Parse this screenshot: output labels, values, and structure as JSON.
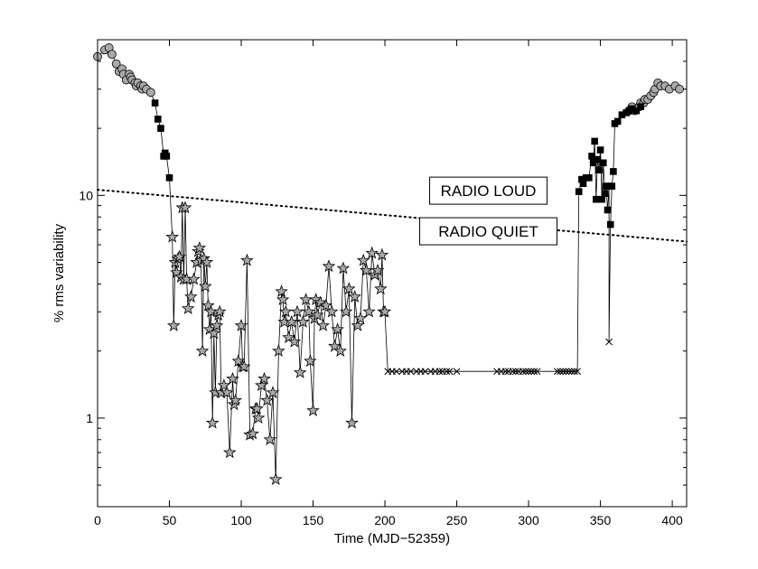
{
  "chart_data": {
    "type": "scatter",
    "xlabel": "Time (MJD−52359)",
    "ylabel": "% rms variability",
    "xlim": [
      0,
      410
    ],
    "ylim": [
      0.4,
      50
    ],
    "yscale": "log",
    "xticks": [
      0,
      50,
      100,
      150,
      200,
      250,
      300,
      350,
      400
    ],
    "yticks": [
      1,
      10
    ],
    "yticklabels": [
      "1",
      "10"
    ],
    "grid": false,
    "annotations": [
      {
        "text": "RADIO LOUD",
        "x": 272,
        "y": 10.5
      },
      {
        "text": "RADIO QUIET",
        "x": 272,
        "y": 6.9
      }
    ],
    "divider": {
      "style": "dotted",
      "x": [
        0,
        410
      ],
      "y": [
        10.6,
        6.2
      ]
    },
    "series": [
      {
        "marker": "circle",
        "x": [
          0,
          5,
          8,
          10,
          13,
          15,
          17,
          18,
          20,
          22,
          23,
          24,
          26,
          27,
          28,
          30,
          31,
          32,
          34,
          37,
          370,
          372,
          374,
          377,
          378,
          380,
          381,
          383,
          385,
          387,
          388,
          390,
          392,
          395,
          398,
          402,
          405
        ],
        "y": [
          42,
          45,
          46,
          43,
          39,
          36,
          37,
          35,
          33,
          35,
          34,
          33,
          32,
          31,
          32,
          31,
          30,
          31,
          30,
          29,
          24,
          25,
          24,
          25,
          26,
          26,
          27,
          27,
          28,
          29,
          30,
          32,
          31,
          31,
          30,
          31,
          30
        ]
      },
      {
        "marker": "square",
        "x": [
          40,
          42,
          44,
          46,
          47,
          48,
          50,
          335,
          337,
          338,
          340,
          342,
          344,
          345,
          346,
          347,
          348,
          349,
          350,
          351,
          352,
          353,
          354,
          355,
          356,
          357,
          358,
          359,
          360,
          362,
          365,
          368,
          370,
          372,
          375,
          378
        ],
        "y": [
          26,
          22,
          20,
          15,
          15.5,
          15,
          12,
          10.4,
          11.8,
          11.3,
          12,
          12,
          15,
          14,
          17.5,
          9.6,
          14.5,
          13,
          16,
          9.6,
          14,
          10.2,
          11,
          8.6,
          11,
          7.4,
          11,
          12.8,
          21,
          21.5,
          23,
          23.5,
          24,
          24.5,
          24,
          25
        ]
      },
      {
        "marker": "star",
        "x": [
          52,
          53,
          54,
          55,
          56,
          57,
          58,
          59,
          60,
          61,
          62,
          63,
          65,
          67,
          69,
          70,
          71,
          72,
          73,
          74,
          75,
          76,
          77,
          78,
          79,
          80,
          81,
          82,
          83,
          84,
          85,
          86,
          88,
          90,
          92,
          94,
          95,
          96,
          98,
          100,
          101,
          102,
          104,
          106,
          108,
          110,
          111,
          112,
          114,
          116,
          118,
          120,
          122,
          124,
          126,
          128,
          129,
          130,
          131,
          133,
          135,
          137,
          139,
          141,
          143,
          145,
          147,
          148,
          150,
          151,
          152,
          153,
          155,
          157,
          159,
          161,
          163,
          165,
          167,
          169,
          171,
          173,
          175,
          177,
          179,
          181,
          183,
          185,
          187,
          189,
          191,
          193,
          195,
          197,
          198,
          199,
          200
        ],
        "y": [
          6.5,
          2.6,
          5,
          4.5,
          5.2,
          5.3,
          4.3,
          8.8,
          4.2,
          8.8,
          4.2,
          3.1,
          3.5,
          4.2,
          5.0,
          5.6,
          5.8,
          5.1,
          2.0,
          5.2,
          3.9,
          5.0,
          3.2,
          2.5,
          3.0,
          0.95,
          2.4,
          1.3,
          2.6,
          2.9,
          3.0,
          1.3,
          1.4,
          1.3,
          0.7,
          1.5,
          1.15,
          1.2,
          1.8,
          2.6,
          1.7,
          1.7,
          5.1,
          0.84,
          0.85,
          1.1,
          1.1,
          1.0,
          1.4,
          1.5,
          1.2,
          0.8,
          1.3,
          0.53,
          2.0,
          3.7,
          3.4,
          2.7,
          3.0,
          2.3,
          2.7,
          2.2,
          3.0,
          1.6,
          2.7,
          3.4,
          3.0,
          1.8,
          1.08,
          2.8,
          3.4,
          2.9,
          3.3,
          2.6,
          3.2,
          4.8,
          3.0,
          2.1,
          2.5,
          2.0,
          4.7,
          3.0,
          3.8,
          0.95,
          3.5,
          2.6,
          2.8,
          5.1,
          4.6,
          3.0,
          5.5,
          4.4,
          4.6,
          3.8,
          5.4,
          3.0,
          3.0
        ]
      },
      {
        "marker": "x",
        "x": [
          202,
          205,
          208,
          212,
          215,
          218,
          222,
          225,
          228,
          232,
          235,
          238,
          240,
          243,
          245,
          250,
          278,
          281,
          284,
          286,
          289,
          291,
          293,
          296,
          298,
          300,
          302,
          304,
          306,
          320,
          322,
          324,
          326,
          328,
          330,
          332,
          334,
          356
        ],
        "y": [
          1.62,
          1.62,
          1.62,
          1.62,
          1.62,
          1.62,
          1.62,
          1.62,
          1.62,
          1.62,
          1.62,
          1.62,
          1.62,
          1.62,
          1.62,
          1.62,
          1.62,
          1.62,
          1.62,
          1.62,
          1.62,
          1.62,
          1.62,
          1.62,
          1.62,
          1.62,
          1.62,
          1.62,
          1.62,
          1.62,
          1.62,
          1.62,
          1.62,
          1.62,
          1.62,
          1.62,
          1.62,
          2.2
        ]
      }
    ]
  }
}
